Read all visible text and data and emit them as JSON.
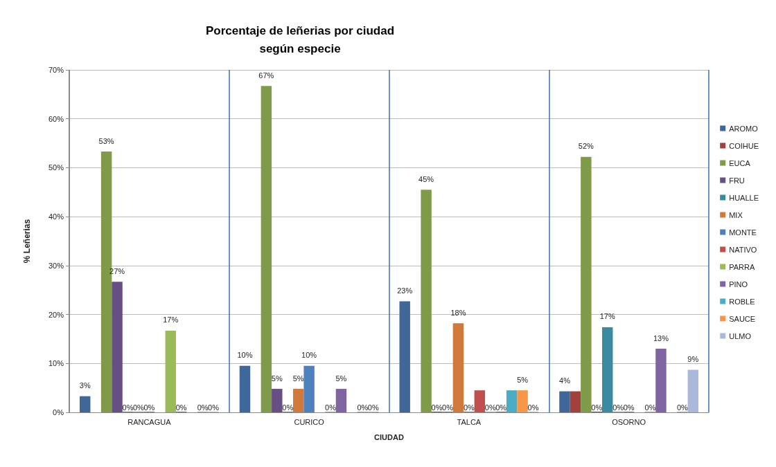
{
  "chart_data": {
    "type": "bar",
    "title": "Porcentaje de leñerias por ciudad\nsegún especie",
    "xlabel": "CIUDAD",
    "ylabel": "% Leñerias",
    "categories": [
      "RANCAGUA",
      "CURICO",
      "TALCA",
      "OSORNO"
    ],
    "ylim": [
      0,
      70
    ],
    "yticks": [
      {
        "value": 0,
        "label": "0%"
      },
      {
        "value": 10,
        "label": "10%"
      },
      {
        "value": 20,
        "label": "20%"
      },
      {
        "value": 30,
        "label": "30%"
      },
      {
        "value": 40,
        "label": "40%"
      },
      {
        "value": 50,
        "label": "50%"
      },
      {
        "value": 60,
        "label": "60%"
      },
      {
        "value": 70,
        "label": "70%"
      }
    ],
    "grid": true,
    "legend": "right",
    "series": [
      {
        "name": "AROMO",
        "color": "#3f679a",
        "values": [
          3.3,
          9.5,
          22.7,
          4.3
        ],
        "value_labels": [
          "3%",
          "10%",
          "23%",
          "4%"
        ]
      },
      {
        "name": "COIHUE",
        "color": "#a2403c",
        "values": [
          null,
          null,
          null,
          4.3
        ],
        "value_labels": [
          null,
          null,
          null,
          null
        ]
      },
      {
        "name": "EUCA",
        "color": "#7f9a48",
        "values": [
          53.3,
          66.7,
          45.5,
          52.2
        ],
        "value_labels": [
          "53%",
          "67%",
          "45%",
          "52%"
        ]
      },
      {
        "name": "FRU",
        "color": "#674f83",
        "values": [
          26.7,
          4.8,
          0,
          0
        ],
        "value_labels": [
          "27%",
          "5%",
          "0%",
          "0%"
        ]
      },
      {
        "name": "HUALLE",
        "color": "#3b8ba0",
        "values": [
          0,
          0,
          0,
          17.4
        ],
        "value_labels": [
          "0%",
          "0%",
          "0%",
          "17%"
        ]
      },
      {
        "name": "MIX",
        "color": "#d0793a",
        "values": [
          0,
          4.8,
          18.2,
          0
        ],
        "value_labels": [
          "0%",
          "5%",
          "18%",
          "0%"
        ]
      },
      {
        "name": "MONTE",
        "color": "#4e81bd",
        "values": [
          0,
          9.5,
          0,
          0
        ],
        "value_labels": [
          "0%",
          "10%",
          "0%",
          "0%"
        ]
      },
      {
        "name": "NATIVO",
        "color": "#c0504d",
        "values": [
          null,
          null,
          4.5,
          null
        ],
        "value_labels": [
          null,
          null,
          null,
          null
        ]
      },
      {
        "name": "PARRA",
        "color": "#9bbb59",
        "values": [
          16.7,
          0,
          0,
          0
        ],
        "value_labels": [
          "17%",
          "0%",
          "0%",
          "0%"
        ]
      },
      {
        "name": "PINO",
        "color": "#8064a2",
        "values": [
          0,
          4.8,
          0,
          13.0
        ],
        "value_labels": [
          "0%",
          "5%",
          "0%",
          "13%"
        ]
      },
      {
        "name": "ROBLE",
        "color": "#4bacc6",
        "values": [
          null,
          null,
          4.5,
          null
        ],
        "value_labels": [
          null,
          null,
          null,
          null
        ]
      },
      {
        "name": "SAUCE",
        "color": "#f79646",
        "values": [
          0,
          0,
          4.5,
          0
        ],
        "value_labels": [
          "0%",
          "0%",
          "5%",
          "0%"
        ]
      },
      {
        "name": "ULMO",
        "color": "#a9b9d9",
        "values": [
          0,
          0,
          0,
          8.7
        ],
        "value_labels": [
          "0%",
          "0%",
          "0%",
          "9%"
        ]
      }
    ]
  }
}
